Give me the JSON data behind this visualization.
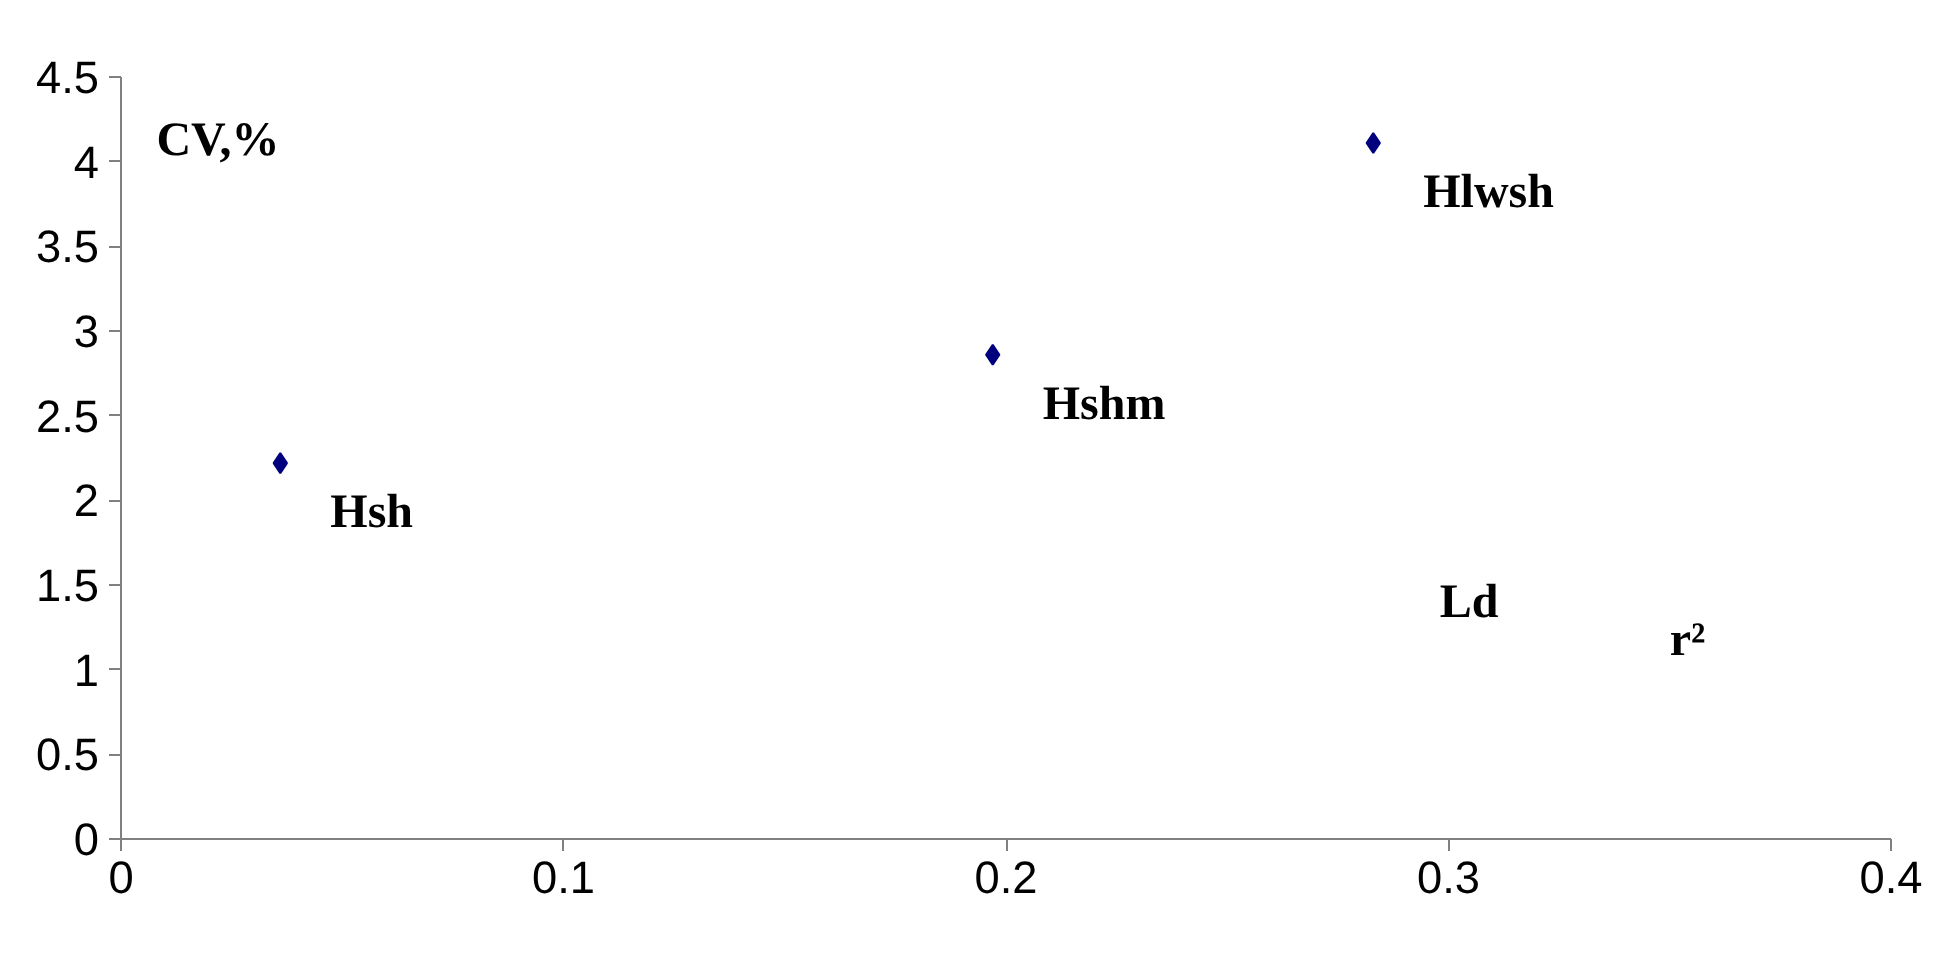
{
  "chart_data": {
    "type": "scatter",
    "xlabel": "r²",
    "ylabel": "CV,%",
    "x": [
      0.036,
      0.197,
      0.283
    ],
    "values": [
      2.22,
      2.86,
      4.11
    ],
    "color": "#00007f",
    "marker": "diamond",
    "xlim": [
      0,
      0.4
    ],
    "xticks": [
      0,
      0.1,
      0.2,
      0.3,
      0.4
    ],
    "ylim": [
      0,
      4.5
    ],
    "yticks": [
      0,
      0.5,
      1,
      1.5,
      2,
      2.5,
      3,
      3.5,
      4,
      4.5
    ],
    "grid": false,
    "annotations": [
      {
        "text": "Hsh",
        "x": 0.036,
        "y": 2.22
      },
      {
        "text": "Hshm",
        "x": 0.197,
        "y": 2.86
      },
      {
        "text": "Hlwsh",
        "x": 0.283,
        "y": 4.11
      },
      "Ld"
    ]
  }
}
